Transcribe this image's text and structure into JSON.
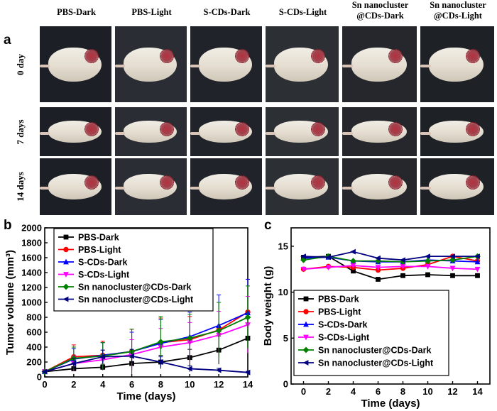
{
  "panel_a": {
    "label": "a",
    "columns": [
      "PBS-Dark",
      "PBS-Light",
      "S-CDs-Dark",
      "S-CDs-Light",
      "Sn nanocluster\n@CDs-Dark",
      "Sn nanocluster\n@CDs-Light"
    ],
    "rows": [
      "0 day",
      "7 days",
      "14 days"
    ]
  },
  "panel_b": {
    "label": "b"
  },
  "panel_c": {
    "label": "c"
  },
  "colors": {
    "PBS-Dark": "#000000",
    "PBS-Light": "#ff0000",
    "S-CDs-Dark": "#0000ff",
    "S-CDs-Light": "#ff00ff",
    "Sn nanocluster@CDs-Dark": "#008000",
    "Sn nanocluster@CDs-Light": "#000080"
  },
  "chart_data": [
    {
      "type": "line",
      "panel": "b",
      "xlabel": "Time (days)",
      "ylabel": "Tumor volume (mm³)",
      "xlim": [
        0,
        14
      ],
      "ylim": [
        0,
        2000
      ],
      "xticks": [
        0,
        2,
        4,
        6,
        8,
        10,
        12,
        14
      ],
      "yticks": [
        0,
        200,
        400,
        600,
        800,
        1000,
        1200,
        1400,
        1600,
        1800,
        2000
      ],
      "legend": "top-left",
      "x": [
        0,
        2,
        4,
        6,
        8,
        10,
        12,
        14
      ],
      "series": [
        {
          "name": "PBS-Dark",
          "marker": "square",
          "values": [
            70,
            110,
            130,
            180,
            200,
            260,
            360,
            520
          ],
          "err": [
            5,
            30,
            40,
            80,
            90,
            110,
            190,
            280
          ]
        },
        {
          "name": "PBS-Light",
          "marker": "circle",
          "values": [
            70,
            270,
            290,
            340,
            460,
            500,
            630,
            870
          ],
          "err": [
            5,
            160,
            190,
            300,
            330,
            310,
            370,
            440
          ]
        },
        {
          "name": "S-CDs-Dark",
          "marker": "triangle-up",
          "values": [
            70,
            240,
            290,
            340,
            450,
            540,
            690,
            860
          ],
          "err": [
            5,
            140,
            170,
            260,
            320,
            330,
            410,
            450
          ]
        },
        {
          "name": "S-CDs-Light",
          "marker": "triangle-down",
          "values": [
            70,
            180,
            230,
            300,
            400,
            460,
            560,
            700
          ],
          "err": [
            5,
            100,
            130,
            200,
            250,
            270,
            320,
            380
          ]
        },
        {
          "name": "Sn nanocluster@CDs-Dark",
          "marker": "diamond",
          "values": [
            70,
            250,
            280,
            340,
            470,
            520,
            620,
            800
          ],
          "err": [
            5,
            150,
            180,
            300,
            340,
            320,
            380,
            420
          ]
        },
        {
          "name": "Sn nanocluster@CDs-Light",
          "marker": "triangle-left",
          "values": [
            70,
            180,
            270,
            280,
            200,
            110,
            90,
            60
          ],
          "err": [
            5,
            70,
            90,
            90,
            70,
            40,
            25,
            15
          ]
        }
      ]
    },
    {
      "type": "line",
      "panel": "c",
      "xlabel": "Time (days)",
      "ylabel": "Body weight (g)",
      "xlim": [
        -1,
        15
      ],
      "ylim": [
        0,
        17
      ],
      "xticks": [
        0,
        2,
        4,
        6,
        8,
        10,
        12,
        14
      ],
      "yticks": [
        0,
        5,
        10,
        15
      ],
      "legend": "bottom-center",
      "x": [
        0,
        2,
        4,
        6,
        8,
        10,
        12,
        14
      ],
      "series": [
        {
          "name": "PBS-Dark",
          "marker": "square",
          "values": [
            13.8,
            13.9,
            12.3,
            11.4,
            11.8,
            11.9,
            11.8,
            11.8
          ]
        },
        {
          "name": "PBS-Light",
          "marker": "circle",
          "values": [
            12.5,
            12.8,
            12.7,
            12.4,
            12.6,
            13.0,
            13.9,
            13.4
          ]
        },
        {
          "name": "S-CDs-Dark",
          "marker": "triangle-up",
          "values": [
            13.7,
            13.8,
            13.4,
            13.3,
            13.3,
            13.5,
            13.4,
            13.3
          ]
        },
        {
          "name": "S-CDs-Light",
          "marker": "triangle-down",
          "values": [
            12.5,
            12.7,
            12.9,
            12.7,
            12.8,
            12.8,
            12.6,
            12.5
          ]
        },
        {
          "name": "Sn nanocluster@CDs-Dark",
          "marker": "diamond",
          "values": [
            13.5,
            13.9,
            13.4,
            13.4,
            13.3,
            13.4,
            13.5,
            13.9
          ]
        },
        {
          "name": "Sn nanocluster@CDs-Light",
          "marker": "triangle-left",
          "values": [
            13.9,
            13.8,
            14.4,
            13.7,
            13.5,
            13.9,
            13.9,
            13.9
          ]
        }
      ]
    }
  ]
}
